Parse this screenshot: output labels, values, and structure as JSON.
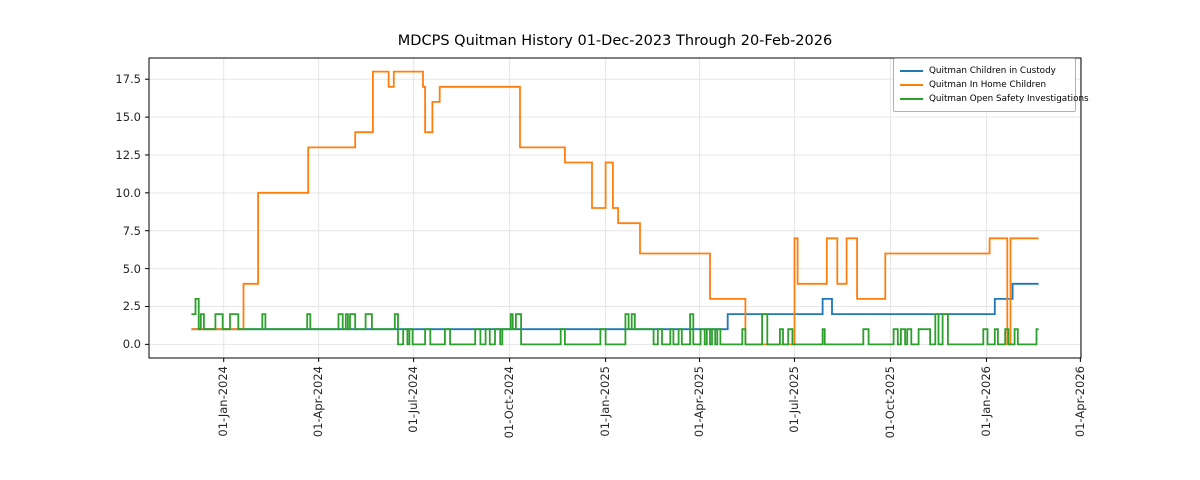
{
  "chart_data": {
    "type": "line",
    "title": "MDCPS Quitman History 01-Dec-2023 Through 20-Feb-2026",
    "grid": true,
    "legend_position": "upper right",
    "x_axis": {
      "start_date": "2023-12-01",
      "end_date": "2026-02-20",
      "unit": "days since 01-Dec-2023",
      "total_days": 812,
      "tick_labels": [
        "01-Jan-2024",
        "01-Apr-2024",
        "01-Jul-2024",
        "01-Oct-2024",
        "01-Jan-2025",
        "01-Apr-2025",
        "01-Jul-2025",
        "01-Oct-2025",
        "01-Jan-2026",
        "01-Apr-2026"
      ],
      "tick_days": [
        31,
        122,
        213,
        305,
        397,
        487,
        578,
        670,
        762,
        852
      ],
      "xlim_days": [
        -40.6,
        852.6
      ]
    },
    "y_axis": {
      "tick_labels": [
        "0.0",
        "2.5",
        "5.0",
        "7.5",
        "10.0",
        "12.5",
        "15.0",
        "17.5"
      ],
      "ticks": [
        0,
        2.5,
        5,
        7.5,
        10,
        12.5,
        15,
        17.5
      ],
      "ylim": [
        -0.9,
        18.9
      ]
    },
    "series": [
      {
        "name": "Quitman Children in Custody",
        "color": "#1f77b4",
        "step_points": [
          [
            0,
            1
          ],
          [
            514,
            2
          ],
          [
            605,
            3
          ],
          [
            614,
            2
          ],
          [
            770,
            3
          ],
          [
            787,
            4
          ]
        ]
      },
      {
        "name": "Quitman In Home Children",
        "color": "#ff7f0e",
        "step_points": [
          [
            0,
            1
          ],
          [
            50,
            4
          ],
          [
            64,
            10
          ],
          [
            112,
            13
          ],
          [
            157,
            14
          ],
          [
            174,
            18
          ],
          [
            189,
            17
          ],
          [
            194,
            18
          ],
          [
            222,
            17
          ],
          [
            224,
            14
          ],
          [
            231,
            16
          ],
          [
            238,
            17
          ],
          [
            315,
            13
          ],
          [
            358,
            12
          ],
          [
            384,
            9
          ],
          [
            397,
            12
          ],
          [
            404,
            9
          ],
          [
            409,
            8
          ],
          [
            430,
            6
          ],
          [
            497,
            3
          ],
          [
            531,
            0
          ],
          [
            578,
            7
          ],
          [
            581,
            4
          ],
          [
            609,
            7
          ],
          [
            619,
            4
          ],
          [
            628,
            7
          ],
          [
            638,
            3
          ],
          [
            665,
            6
          ],
          [
            765,
            7
          ],
          [
            782,
            0
          ],
          [
            785,
            7
          ]
        ]
      },
      {
        "name": "Quitman Open Safety Investigations",
        "color": "#2ca02c",
        "step_points": [
          [
            0,
            2
          ],
          [
            4,
            3
          ],
          [
            7,
            1
          ],
          [
            9,
            2
          ],
          [
            12,
            1
          ],
          [
            23,
            2
          ],
          [
            30,
            1
          ],
          [
            37,
            2
          ],
          [
            45,
            1
          ],
          [
            68,
            2
          ],
          [
            71,
            1
          ],
          [
            111,
            2
          ],
          [
            114,
            1
          ],
          [
            141,
            2
          ],
          [
            145,
            1
          ],
          [
            148,
            2
          ],
          [
            150,
            1
          ],
          [
            152,
            2
          ],
          [
            157,
            1
          ],
          [
            167,
            2
          ],
          [
            173,
            1
          ],
          [
            195,
            2
          ],
          [
            198,
            0
          ],
          [
            203,
            1
          ],
          [
            207,
            0
          ],
          [
            209,
            1
          ],
          [
            212,
            0
          ],
          [
            224,
            1
          ],
          [
            229,
            0
          ],
          [
            243,
            1
          ],
          [
            248,
            0
          ],
          [
            272,
            1
          ],
          [
            277,
            0
          ],
          [
            282,
            1
          ],
          [
            286,
            0
          ],
          [
            291,
            1
          ],
          [
            296,
            0
          ],
          [
            298,
            1
          ],
          [
            306,
            2
          ],
          [
            308,
            1
          ],
          [
            311,
            2
          ],
          [
            316,
            0
          ],
          [
            354,
            1
          ],
          [
            358,
            0
          ],
          [
            392,
            1
          ],
          [
            397,
            0
          ],
          [
            416,
            2
          ],
          [
            419,
            1
          ],
          [
            422,
            2
          ],
          [
            425,
            1
          ],
          [
            443,
            0
          ],
          [
            447,
            1
          ],
          [
            451,
            0
          ],
          [
            459,
            1
          ],
          [
            462,
            0
          ],
          [
            467,
            1
          ],
          [
            470,
            0
          ],
          [
            478,
            2
          ],
          [
            481,
            0
          ],
          [
            488,
            1
          ],
          [
            492,
            0
          ],
          [
            494,
            1
          ],
          [
            497,
            0
          ],
          [
            499,
            1
          ],
          [
            502,
            0
          ],
          [
            504,
            1
          ],
          [
            507,
            0
          ],
          [
            528,
            1
          ],
          [
            531,
            0
          ],
          [
            547,
            2
          ],
          [
            552,
            0
          ],
          [
            564,
            1
          ],
          [
            567,
            0
          ],
          [
            572,
            1
          ],
          [
            576,
            0
          ],
          [
            605,
            1
          ],
          [
            607,
            0
          ],
          [
            644,
            1
          ],
          [
            649,
            0
          ],
          [
            673,
            1
          ],
          [
            677,
            0
          ],
          [
            680,
            1
          ],
          [
            684,
            0
          ],
          [
            686,
            1
          ],
          [
            690,
            0
          ],
          [
            697,
            1
          ],
          [
            708,
            0
          ],
          [
            713,
            2
          ],
          [
            716,
            0
          ],
          [
            720,
            2
          ],
          [
            725,
            0
          ],
          [
            759,
            1
          ],
          [
            763,
            0
          ],
          [
            770,
            1
          ],
          [
            773,
            0
          ],
          [
            780,
            1
          ],
          [
            783,
            0
          ],
          [
            789,
            1
          ],
          [
            792,
            0
          ],
          [
            810,
            1
          ]
        ]
      }
    ]
  }
}
